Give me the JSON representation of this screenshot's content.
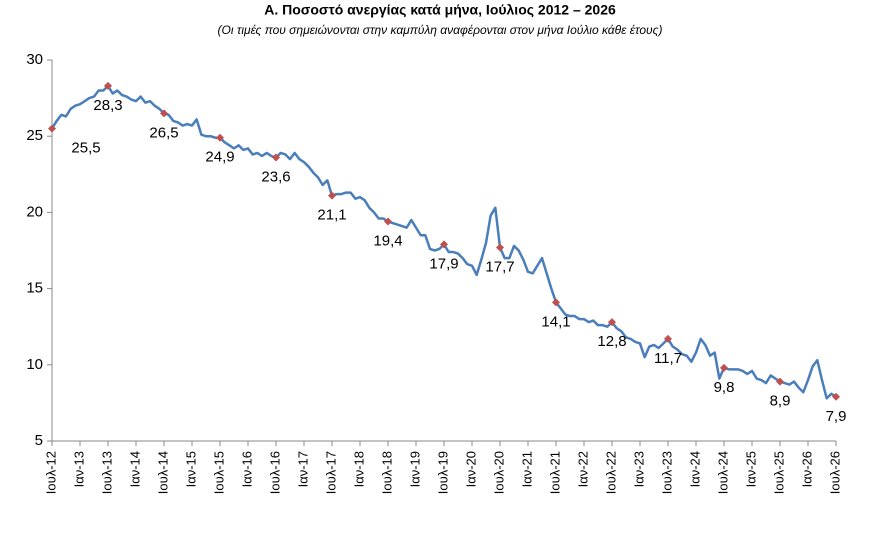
{
  "chart_data": {
    "type": "line",
    "title": "Α. Ποσοστό ανεργίας κατά μήνα, Ιούλιος 2012 – 2026",
    "subtitle": "(Οι τιμές που σημειώνονται στην καμπύλη αναφέρονται στον μήνα Ιούλιο κάθε έτους)",
    "color": "#4a7ebb",
    "marker_color": "#c0504d",
    "ylim": [
      5,
      30
    ],
    "yticks": [
      5,
      10,
      15,
      20,
      25,
      30
    ],
    "categories": [
      "Ιουλ-12",
      null,
      null,
      null,
      null,
      null,
      "Ιαν-13",
      null,
      null,
      null,
      null,
      null,
      "Ιουλ-13",
      null,
      null,
      null,
      null,
      null,
      "Ιαν-14",
      null,
      null,
      null,
      null,
      null,
      "Ιουλ-14",
      null,
      null,
      null,
      null,
      null,
      "Ιαν-15",
      null,
      null,
      null,
      null,
      null,
      "Ιουλ-15",
      null,
      null,
      null,
      null,
      null,
      "Ιαν-16",
      null,
      null,
      null,
      null,
      null,
      "Ιουλ-16",
      null,
      null,
      null,
      null,
      null,
      "Ιαν-17",
      null,
      null,
      null,
      null,
      null,
      "Ιουλ-17",
      null,
      null,
      null,
      null,
      null,
      "Ιαν-18",
      null,
      null,
      null,
      null,
      null,
      "Ιουλ-18",
      null,
      null,
      null,
      null,
      null,
      "Ιαν-19",
      null,
      null,
      null,
      null,
      null,
      "Ιουλ-19",
      null,
      null,
      null,
      null,
      null,
      "Ιαν-20",
      null,
      null,
      null,
      null,
      null,
      "Ιουλ-20",
      null,
      null,
      null,
      null,
      null,
      "Ιαν-21",
      null,
      null,
      null,
      null,
      null,
      "Ιουλ-21",
      null,
      null,
      null,
      null,
      null,
      "Ιαν-22",
      null,
      null,
      null,
      null,
      null,
      "Ιουλ-22",
      null,
      null,
      null,
      null,
      null,
      "Ιαν-23",
      null,
      null,
      null,
      null,
      null,
      "Ιουλ-23",
      null,
      null,
      null,
      null,
      null,
      "Ιαν-24",
      null,
      null,
      null,
      null,
      null,
      "Ιουλ-24",
      null,
      null,
      null,
      null,
      null,
      "Ιαν-25",
      null,
      null,
      null,
      null,
      null,
      "Ιουλ-25",
      null,
      null,
      null,
      null,
      null,
      "Ιαν-26",
      null,
      null,
      null,
      null,
      null,
      "Ιουλ-26"
    ],
    "values": [
      25.5,
      26.0,
      26.4,
      26.3,
      26.8,
      27.0,
      27.1,
      27.3,
      27.5,
      27.6,
      28.0,
      28.0,
      28.3,
      27.8,
      28.0,
      27.7,
      27.6,
      27.4,
      27.3,
      27.6,
      27.2,
      27.3,
      27.0,
      26.8,
      26.5,
      26.4,
      26.0,
      25.9,
      25.7,
      25.8,
      25.7,
      26.1,
      25.1,
      25.0,
      25.0,
      24.9,
      24.9,
      24.6,
      24.4,
      24.2,
      24.4,
      24.1,
      24.2,
      23.8,
      23.9,
      23.7,
      23.9,
      23.7,
      23.6,
      23.9,
      23.8,
      23.5,
      23.9,
      23.5,
      23.3,
      23.0,
      22.6,
      22.3,
      21.8,
      22.1,
      21.1,
      21.2,
      21.2,
      21.3,
      21.3,
      20.9,
      21.0,
      20.8,
      20.3,
      20.0,
      19.6,
      19.6,
      19.4,
      19.3,
      19.2,
      19.1,
      19.0,
      19.5,
      19.0,
      18.5,
      18.5,
      17.6,
      17.5,
      17.6,
      17.9,
      17.4,
      17.4,
      17.3,
      17.0,
      16.6,
      16.5,
      15.9,
      16.9,
      18.0,
      19.8,
      20.3,
      17.7,
      17.0,
      17.0,
      17.8,
      17.5,
      16.9,
      16.1,
      16.0,
      16.5,
      17.0,
      16.0,
      15.0,
      14.1,
      13.7,
      13.3,
      13.2,
      13.2,
      13.0,
      13.0,
      12.8,
      12.9,
      12.6,
      12.6,
      12.5,
      12.8,
      12.4,
      12.2,
      11.8,
      11.7,
      11.5,
      11.4,
      10.5,
      11.2,
      11.3,
      11.1,
      11.4,
      11.7,
      11.2,
      11.0,
      10.7,
      10.6,
      10.2,
      10.8,
      11.7,
      11.3,
      10.6,
      10.8,
      9.1,
      9.8,
      9.7,
      9.7,
      9.7,
      9.6,
      9.4,
      9.6,
      9.1,
      9.0,
      8.8,
      9.3,
      9.1,
      8.9,
      8.8,
      8.7,
      8.9,
      8.5,
      8.2,
      9.0,
      9.9,
      10.3,
      9.0,
      7.8,
      8.1,
      7.9
    ],
    "value_labels": [
      "25,5",
      null,
      null,
      null,
      null,
      null,
      null,
      null,
      null,
      null,
      null,
      null,
      "28,3",
      null,
      null,
      null,
      null,
      null,
      null,
      null,
      null,
      null,
      null,
      null,
      "26,5",
      null,
      null,
      null,
      null,
      null,
      null,
      null,
      null,
      null,
      null,
      null,
      "24,9",
      null,
      null,
      null,
      null,
      null,
      null,
      null,
      null,
      null,
      null,
      null,
      "23,6",
      null,
      null,
      null,
      null,
      null,
      null,
      null,
      null,
      null,
      null,
      null,
      "21,1",
      null,
      null,
      null,
      null,
      null,
      null,
      null,
      null,
      null,
      null,
      null,
      "19,4",
      null,
      null,
      null,
      null,
      null,
      null,
      null,
      null,
      null,
      null,
      null,
      "17,9",
      null,
      null,
      null,
      null,
      null,
      null,
      null,
      null,
      null,
      null,
      null,
      "17,7",
      null,
      null,
      null,
      null,
      null,
      null,
      null,
      null,
      null,
      null,
      null,
      "14,1",
      null,
      null,
      null,
      null,
      null,
      null,
      null,
      null,
      null,
      null,
      null,
      "12,8",
      null,
      null,
      null,
      null,
      null,
      null,
      null,
      null,
      null,
      null,
      null,
      "11,7",
      null,
      null,
      null,
      null,
      null,
      null,
      null,
      null,
      null,
      null,
      null,
      "9,8",
      null,
      null,
      null,
      null,
      null,
      null,
      null,
      null,
      null,
      null,
      null,
      "8,9",
      null,
      null,
      null,
      null,
      null,
      null,
      null,
      null,
      null,
      null,
      null,
      "7,9"
    ]
  }
}
